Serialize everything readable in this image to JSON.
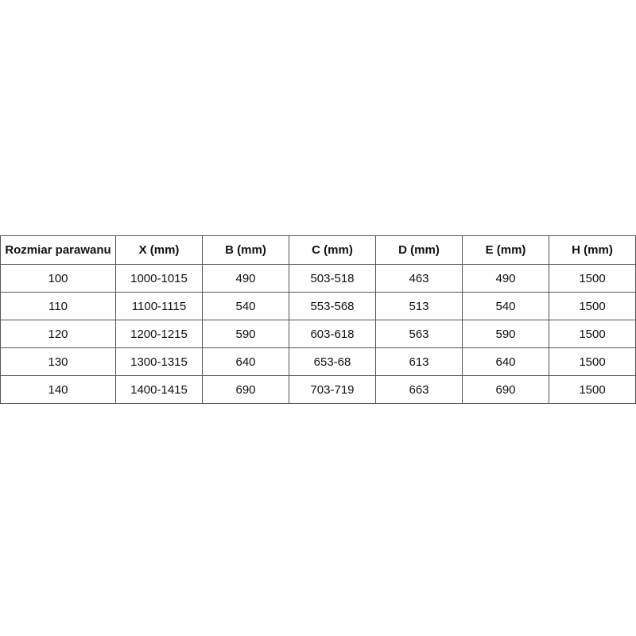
{
  "table": {
    "header": [
      "Rozmiar parawanu",
      "X (mm)",
      "B (mm)",
      "C (mm)",
      "D (mm)",
      "E (mm)",
      "H (mm)"
    ],
    "rows": [
      [
        100,
        "1000-1015",
        490,
        "503-518",
        463,
        490,
        1500
      ],
      [
        110,
        "1100-1115",
        540,
        "553-568",
        513,
        540,
        1500
      ],
      [
        120,
        "1200-1215",
        590,
        "603-618",
        563,
        590,
        1500
      ],
      [
        130,
        "1300-1315",
        640,
        "653-68",
        613,
        640,
        1500
      ],
      [
        140,
        "1400-1415",
        690,
        "703-719",
        663,
        690,
        1500
      ]
    ]
  }
}
